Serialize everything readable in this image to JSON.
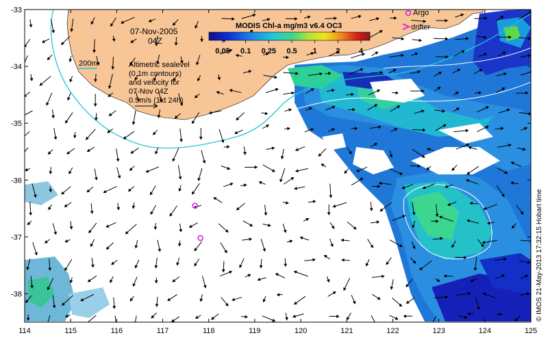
{
  "chart_data": {
    "type": "map",
    "title": "MODIS Chl-a mg/m3 v6.4 OC3",
    "date": "07-Nov-2005",
    "time": "04Z",
    "x_range": [
      114,
      125
    ],
    "y_range": [
      -38.5,
      -33
    ],
    "x_ticks": [
      114,
      115,
      116,
      117,
      118,
      119,
      120,
      121,
      122,
      123,
      124,
      125
    ],
    "y_ticks": [
      -33,
      -34,
      -35,
      -36,
      -37,
      -38
    ],
    "colorbar": {
      "ticks": [
        "0.05",
        "0.1",
        "0.25",
        "0.5",
        "1",
        "2",
        "4"
      ],
      "colors": [
        "#12108a",
        "#0d2fd6",
        "#1a8ee8",
        "#22c8d8",
        "#3dd78a",
        "#b4e23a",
        "#f2e11f",
        "#f08a1a",
        "#d81e1a",
        "#8a1a1a"
      ]
    },
    "isobath_label": "200m",
    "annotation_lines": [
      "Altimetric sealevel",
      "(0.1m contours)",
      "and velocity for",
      "07-Nov 04Z",
      "0.5m/s (1kt 24h)"
    ],
    "legend": {
      "argo": "Argo",
      "drifter": "drifter"
    },
    "argo_floats": [
      {
        "lon": 117.7,
        "lat": -36.45
      },
      {
        "lon": 117.82,
        "lat": -37.02
      }
    ],
    "credit": "© IMOS 21-May-2013 17:32:15 Hobart time",
    "colors": {
      "land": "#f7c596",
      "isobath": "#22c5d5",
      "argo": "#e020e0",
      "vector": "#000000",
      "contour": "#ffffff"
    }
  }
}
